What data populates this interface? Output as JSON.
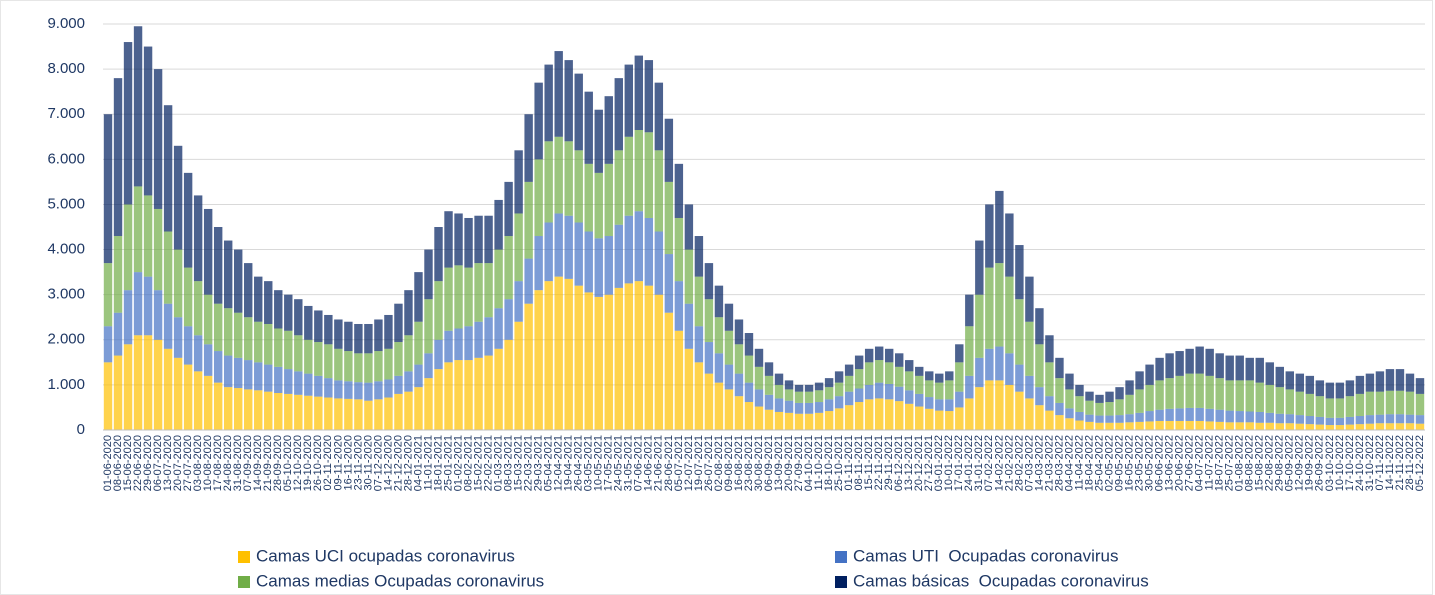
{
  "chart_data": {
    "type": "bar",
    "stacked": true,
    "grid": true,
    "legend": "bottom",
    "ylim": [
      0,
      9000
    ],
    "yticks": [
      0,
      {
        "value": 1000,
        "label": "1.000"
      },
      {
        "value": 2000,
        "label": "2.000"
      },
      {
        "value": 3000,
        "label": "3.000"
      },
      {
        "value": 4000,
        "label": "4.000"
      },
      {
        "value": 5000,
        "label": "5.000"
      },
      {
        "value": 6000,
        "label": "6.000"
      },
      {
        "value": 7000,
        "label": "7.000"
      },
      {
        "value": 8000,
        "label": "8.000"
      },
      {
        "value": 9000,
        "label": "9.000"
      }
    ],
    "categories": [
      "01-06-2020",
      "08-06-2020",
      "15-06-2020",
      "22-06-2020",
      "29-06-2020",
      "06-07-2020",
      "13-07-2020",
      "20-07-2020",
      "27-07-2020",
      "03-08-2020",
      "10-08-2020",
      "17-08-2020",
      "24-08-2020",
      "31-08-2020",
      "07-09-2020",
      "14-09-2020",
      "21-09-2020",
      "28-09-2020",
      "05-10-2020",
      "12-10-2020",
      "19-10-2020",
      "26-10-2020",
      "02-11-2020",
      "09-11-2020",
      "16-11-2020",
      "23-11-2020",
      "30-11-2020",
      "07-12-2020",
      "14-12-2020",
      "21-12-2020",
      "28-12-2020",
      "04-01-2021",
      "11-01-2021",
      "18-01-2021",
      "25-01-2021",
      "01-02-2021",
      "08-02-2021",
      "15-02-2021",
      "22-02-2021",
      "01-03-2021",
      "08-03-2021",
      "15-03-2021",
      "22-03-2021",
      "29-03-2021",
      "05-04-2021",
      "12-04-2021",
      "19-04-2021",
      "26-04-2021",
      "03-05-2021",
      "10-05-2021",
      "17-05-2021",
      "24-05-2021",
      "31-05-2021",
      "07-06-2021",
      "14-06-2021",
      "21-06-2021",
      "28-06-2021",
      "05-07-2021",
      "12-07-2021",
      "19-07-2021",
      "26-07-2021",
      "02-08-2021",
      "09-08-2021",
      "16-08-2021",
      "23-08-2021",
      "30-08-2021",
      "06-09-2021",
      "13-09-2021",
      "20-09-2021",
      "27-09-2021",
      "04-10-2021",
      "11-10-2021",
      "18-10-2021",
      "25-10-2021",
      "01-11-2021",
      "08-11-2021",
      "15-11-2021",
      "22-11-2021",
      "29-11-2021",
      "06-12-2021",
      "13-12-2021",
      "20-12-2021",
      "27-12-2021",
      "03-01-2022",
      "10-01-2022",
      "17-01-2022",
      "24-01-2022",
      "31-01-2022",
      "07-02-2022",
      "14-02-2022",
      "21-02-2022",
      "28-02-2022",
      "07-03-2022",
      "14-03-2022",
      "21-03-2022",
      "28-03-2022",
      "04-04-2022",
      "11-04-2022",
      "18-04-2022",
      "25-04-2022",
      "02-05-2022",
      "09-05-2022",
      "16-05-2022",
      "23-05-2022",
      "30-05-2022",
      "06-06-2022",
      "13-06-2022",
      "20-06-2022",
      "27-06-2022",
      "04-07-2022",
      "11-07-2022",
      "18-07-2022",
      "25-07-2022",
      "01-08-2022",
      "08-08-2022",
      "15-08-2022",
      "22-08-2022",
      "29-08-2022",
      "05-09-2022",
      "12-09-2022",
      "19-09-2022",
      "26-09-2022",
      "03-10-2022",
      "10-10-2022",
      "17-10-2022",
      "24-10-2022",
      "31-10-2022",
      "07-11-2022",
      "14-11-2022",
      "21-11-2022",
      "28-11-2022",
      "05-12-2022"
    ],
    "series": [
      {
        "name": "Camas UCI ocupadas coronavirus",
        "color": "#ffc000",
        "values": [
          1500,
          1650,
          1900,
          2100,
          2100,
          2000,
          1800,
          1600,
          1450,
          1300,
          1200,
          1050,
          950,
          930,
          900,
          880,
          850,
          820,
          800,
          780,
          760,
          740,
          720,
          700,
          690,
          680,
          650,
          680,
          720,
          800,
          850,
          950,
          1150,
          1350,
          1500,
          1550,
          1550,
          1600,
          1650,
          1800,
          2000,
          2400,
          2800,
          3100,
          3300,
          3400,
          3350,
          3200,
          3050,
          2950,
          3000,
          3150,
          3250,
          3300,
          3200,
          3000,
          2600,
          2200,
          1800,
          1500,
          1250,
          1050,
          900,
          750,
          620,
          520,
          450,
          400,
          380,
          360,
          360,
          380,
          420,
          480,
          550,
          620,
          680,
          700,
          680,
          640,
          580,
          520,
          470,
          430,
          420,
          500,
          700,
          950,
          1100,
          1100,
          1000,
          850,
          700,
          550,
          430,
          330,
          260,
          210,
          180,
          160,
          160,
          160,
          170,
          180,
          190,
          200,
          200,
          200,
          200,
          200,
          190,
          180,
          170,
          170,
          170,
          160,
          160,
          150,
          150,
          140,
          130,
          120,
          110,
          110,
          120,
          130,
          140,
          150,
          150,
          150,
          150,
          140
        ]
      },
      {
        "name": "Camas UTI  Ocupadas coronavirus",
        "color": "#4472c4",
        "values": [
          800,
          950,
          1200,
          1400,
          1300,
          1100,
          1000,
          900,
          850,
          800,
          700,
          700,
          700,
          670,
          650,
          620,
          600,
          580,
          550,
          520,
          490,
          460,
          430,
          400,
          390,
          380,
          400,
          400,
          400,
          400,
          450,
          500,
          550,
          650,
          700,
          700,
          750,
          800,
          850,
          900,
          900,
          900,
          1000,
          1200,
          1300,
          1400,
          1400,
          1400,
          1350,
          1300,
          1300,
          1400,
          1500,
          1550,
          1500,
          1400,
          1300,
          1100,
          1000,
          800,
          700,
          650,
          550,
          500,
          430,
          380,
          330,
          300,
          270,
          240,
          240,
          240,
          260,
          270,
          300,
          300,
          320,
          350,
          340,
          320,
          300,
          280,
          260,
          250,
          260,
          350,
          500,
          650,
          700,
          750,
          700,
          600,
          500,
          400,
          320,
          270,
          220,
          190,
          160,
          160,
          160,
          170,
          180,
          200,
          230,
          250,
          270,
          280,
          290,
          290,
          280,
          270,
          260,
          250,
          240,
          240,
          220,
          210,
          200,
          190,
          180,
          170,
          160,
          160,
          170,
          180,
          190,
          190,
          200,
          200,
          190,
          190
        ]
      },
      {
        "name": "Camas medias Ocupadas coronavirus",
        "color": "#70ad47",
        "values": [
          1400,
          1700,
          1900,
          1900,
          1800,
          1800,
          1600,
          1500,
          1300,
          1200,
          1100,
          1050,
          1050,
          1000,
          950,
          900,
          900,
          850,
          850,
          800,
          750,
          750,
          750,
          700,
          670,
          640,
          650,
          670,
          680,
          750,
          800,
          950,
          1200,
          1300,
          1400,
          1400,
          1300,
          1300,
          1200,
          1300,
          1400,
          1500,
          1700,
          1700,
          1800,
          1700,
          1650,
          1600,
          1500,
          1450,
          1600,
          1650,
          1750,
          1800,
          1900,
          1800,
          1600,
          1400,
          1200,
          1100,
          950,
          800,
          750,
          650,
          600,
          500,
          420,
          300,
          250,
          250,
          250,
          260,
          270,
          300,
          350,
          430,
          500,
          500,
          480,
          440,
          420,
          400,
          370,
          370,
          420,
          650,
          1100,
          1400,
          1800,
          1850,
          1700,
          1450,
          1200,
          950,
          750,
          550,
          420,
          350,
          310,
          280,
          300,
          350,
          430,
          520,
          580,
          650,
          680,
          720,
          760,
          760,
          730,
          700,
          670,
          680,
          690,
          650,
          620,
          590,
          550,
          520,
          490,
          460,
          430,
          430,
          460,
          490,
          520,
          510,
          520,
          520,
          510,
          470
        ]
      },
      {
        "name": "Camas básicas  Ocupadas coronavirus",
        "color": "#002060",
        "values": [
          3300,
          3500,
          3600,
          3550,
          3300,
          3100,
          2800,
          2300,
          2100,
          1900,
          1900,
          1700,
          1500,
          1400,
          1200,
          1000,
          950,
          850,
          800,
          800,
          750,
          700,
          650,
          650,
          650,
          650,
          650,
          700,
          750,
          850,
          1000,
          1100,
          1100,
          1200,
          1250,
          1150,
          1100,
          1050,
          1050,
          1100,
          1200,
          1400,
          1500,
          1700,
          1700,
          1900,
          1800,
          1700,
          1600,
          1400,
          1500,
          1600,
          1600,
          1650,
          1600,
          1500,
          1400,
          1200,
          1000,
          900,
          800,
          700,
          600,
          550,
          500,
          400,
          300,
          250,
          200,
          150,
          150,
          170,
          200,
          250,
          250,
          300,
          300,
          300,
          300,
          300,
          250,
          200,
          200,
          200,
          200,
          400,
          700,
          1200,
          1400,
          1600,
          1400,
          1200,
          1000,
          800,
          600,
          450,
          350,
          250,
          200,
          180,
          230,
          270,
          320,
          400,
          450,
          500,
          550,
          550,
          550,
          600,
          600,
          550,
          550,
          550,
          500,
          550,
          500,
          450,
          400,
          400,
          400,
          350,
          350,
          350,
          350,
          400,
          400,
          450,
          480,
          480,
          400,
          350
        ]
      }
    ]
  }
}
